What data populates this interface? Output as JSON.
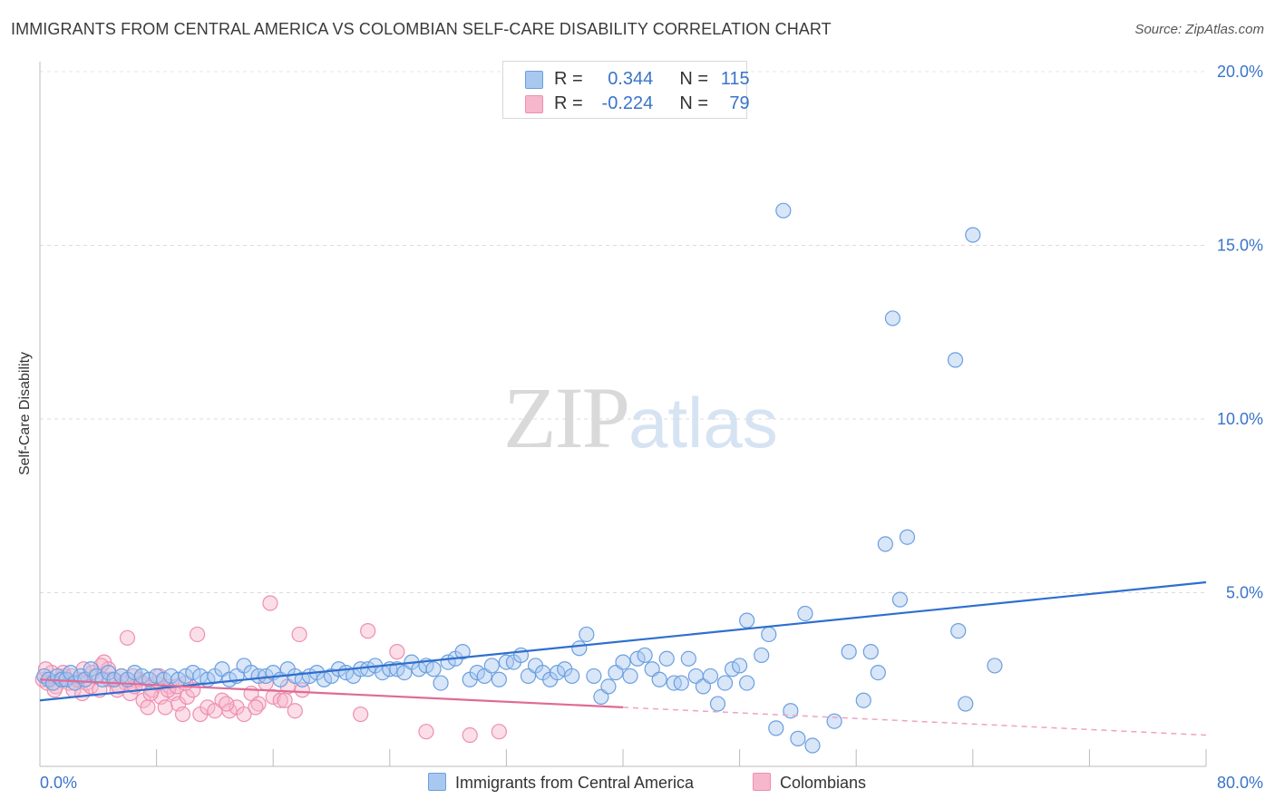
{
  "title": "IMMIGRANTS FROM CENTRAL AMERICA VS COLOMBIAN SELF-CARE DISABILITY CORRELATION CHART",
  "source": "Source: ZipAtlas.com",
  "watermark": {
    "zip": "ZIP",
    "atlas": "atlas"
  },
  "legend_top": {
    "rows": [
      {
        "r_label": "R =",
        "r_value": "0.344",
        "n_label": "N =",
        "n_value": "115",
        "color": "#a9c8f0"
      },
      {
        "r_label": "R =",
        "r_value": "-0.224",
        "n_label": "N =",
        "n_value": "79",
        "color": "#f6b6cb"
      }
    ]
  },
  "chart_data": {
    "type": "scatter",
    "xlabel": "",
    "ylabel": "Self-Care Disability",
    "xlim": [
      0,
      80
    ],
    "ylim": [
      0,
      20
    ],
    "x_tick_labels": [
      "0.0%",
      "80.0%"
    ],
    "y_tick_labels": [
      "5.0%",
      "10.0%",
      "15.0%",
      "20.0%"
    ],
    "y_ticks": [
      5,
      10,
      15,
      20
    ],
    "grid": true,
    "legend_placement": "bottom-center",
    "series": [
      {
        "name": "Immigrants from Central America",
        "color": "#6a9fe0",
        "fill": "#a9c8f0",
        "trend": {
          "x": [
            0,
            80
          ],
          "y": [
            1.9,
            5.3
          ],
          "style": "solid"
        },
        "points": [
          [
            0.3,
            2.6
          ],
          [
            0.6,
            2.5
          ],
          [
            0.9,
            2.4
          ],
          [
            1.2,
            2.6
          ],
          [
            1.5,
            2.5
          ],
          [
            1.8,
            2.5
          ],
          [
            2.1,
            2.7
          ],
          [
            2.4,
            2.4
          ],
          [
            2.8,
            2.6
          ],
          [
            3.1,
            2.5
          ],
          [
            3.5,
            2.8
          ],
          [
            3.9,
            2.6
          ],
          [
            4.3,
            2.5
          ],
          [
            4.7,
            2.7
          ],
          [
            5.1,
            2.5
          ],
          [
            5.6,
            2.6
          ],
          [
            6.0,
            2.5
          ],
          [
            6.5,
            2.7
          ],
          [
            7.0,
            2.6
          ],
          [
            7.5,
            2.5
          ],
          [
            8.0,
            2.6
          ],
          [
            8.5,
            2.5
          ],
          [
            9.0,
            2.6
          ],
          [
            9.5,
            2.5
          ],
          [
            10.0,
            2.6
          ],
          [
            10.5,
            2.7
          ],
          [
            11.0,
            2.6
          ],
          [
            11.5,
            2.5
          ],
          [
            12.0,
            2.6
          ],
          [
            12.5,
            2.8
          ],
          [
            13.0,
            2.5
          ],
          [
            13.5,
            2.6
          ],
          [
            14.0,
            2.9
          ],
          [
            14.5,
            2.7
          ],
          [
            15.0,
            2.6
          ],
          [
            15.5,
            2.6
          ],
          [
            16.0,
            2.7
          ],
          [
            16.5,
            2.5
          ],
          [
            17.0,
            2.8
          ],
          [
            17.5,
            2.6
          ],
          [
            18.0,
            2.5
          ],
          [
            18.5,
            2.6
          ],
          [
            19.0,
            2.7
          ],
          [
            19.5,
            2.5
          ],
          [
            20.0,
            2.6
          ],
          [
            20.5,
            2.8
          ],
          [
            21.0,
            2.7
          ],
          [
            21.5,
            2.6
          ],
          [
            22.0,
            2.8
          ],
          [
            22.5,
            2.8
          ],
          [
            23.0,
            2.9
          ],
          [
            23.5,
            2.7
          ],
          [
            24.0,
            2.8
          ],
          [
            24.5,
            2.8
          ],
          [
            25.0,
            2.7
          ],
          [
            25.5,
            3.0
          ],
          [
            26.0,
            2.8
          ],
          [
            26.5,
            2.9
          ],
          [
            27.0,
            2.8
          ],
          [
            27.5,
            2.4
          ],
          [
            28.0,
            3.0
          ],
          [
            28.5,
            3.1
          ],
          [
            29.0,
            3.3
          ],
          [
            29.5,
            2.5
          ],
          [
            30.0,
            2.7
          ],
          [
            30.5,
            2.6
          ],
          [
            31.0,
            2.9
          ],
          [
            31.5,
            2.5
          ],
          [
            32.0,
            3.0
          ],
          [
            32.5,
            3.0
          ],
          [
            33.0,
            3.2
          ],
          [
            33.5,
            2.6
          ],
          [
            34.0,
            2.9
          ],
          [
            34.5,
            2.7
          ],
          [
            35.0,
            2.5
          ],
          [
            35.5,
            2.7
          ],
          [
            36.0,
            2.8
          ],
          [
            36.5,
            2.6
          ],
          [
            37.0,
            3.4
          ],
          [
            37.5,
            3.8
          ],
          [
            38.0,
            2.6
          ],
          [
            38.5,
            2.0
          ],
          [
            39.0,
            2.3
          ],
          [
            39.5,
            2.7
          ],
          [
            40.0,
            3.0
          ],
          [
            40.5,
            2.6
          ],
          [
            41.0,
            3.1
          ],
          [
            41.5,
            3.2
          ],
          [
            42.0,
            2.8
          ],
          [
            42.5,
            2.5
          ],
          [
            43.0,
            3.1
          ],
          [
            43.5,
            2.4
          ],
          [
            44.0,
            2.4
          ],
          [
            44.5,
            3.1
          ],
          [
            45.0,
            2.6
          ],
          [
            45.5,
            2.3
          ],
          [
            46.0,
            2.6
          ],
          [
            46.5,
            1.8
          ],
          [
            47.0,
            2.4
          ],
          [
            47.5,
            2.8
          ],
          [
            48.0,
            2.9
          ],
          [
            48.5,
            2.4
          ],
          [
            49.5,
            3.2
          ],
          [
            50.5,
            1.1
          ],
          [
            51.5,
            1.6
          ],
          [
            52.0,
            0.8
          ],
          [
            53.0,
            0.6
          ],
          [
            54.5,
            1.3
          ],
          [
            56.5,
            1.9
          ],
          [
            57.0,
            3.3
          ],
          [
            58.0,
            6.4
          ],
          [
            59.5,
            6.6
          ],
          [
            63.5,
            1.8
          ],
          [
            65.5,
            2.9
          ],
          [
            55.5,
            3.3
          ],
          [
            59.0,
            4.8
          ],
          [
            51.0,
            16.0
          ],
          [
            64.0,
            15.3
          ],
          [
            58.5,
            12.9
          ],
          [
            62.8,
            11.7
          ],
          [
            48.5,
            4.2
          ],
          [
            52.5,
            4.4
          ],
          [
            63.0,
            3.9
          ],
          [
            50.0,
            3.8
          ],
          [
            57.5,
            2.7
          ]
        ]
      },
      {
        "name": "Colombians",
        "color": "#ee8fb0",
        "fill": "#f6b6cb",
        "trend": {
          "x": [
            0,
            40
          ],
          "y": [
            2.5,
            1.7
          ],
          "style": "solid",
          "dashed_x": [
            40,
            80
          ],
          "dashed_y": [
            1.7,
            0.9
          ]
        },
        "points": [
          [
            0.2,
            2.5
          ],
          [
            0.5,
            2.4
          ],
          [
            0.8,
            2.7
          ],
          [
            1.1,
            2.3
          ],
          [
            1.4,
            2.5
          ],
          [
            1.7,
            2.6
          ],
          [
            2.0,
            2.4
          ],
          [
            2.3,
            2.2
          ],
          [
            2.6,
            2.5
          ],
          [
            2.9,
            2.1
          ],
          [
            3.2,
            2.4
          ],
          [
            3.5,
            2.3
          ],
          [
            3.8,
            2.6
          ],
          [
            4.1,
            2.2
          ],
          [
            4.4,
            3.0
          ],
          [
            4.7,
            2.8
          ],
          [
            5.0,
            2.5
          ],
          [
            5.3,
            2.2
          ],
          [
            5.6,
            2.6
          ],
          [
            5.9,
            2.4
          ],
          [
            6.2,
            2.1
          ],
          [
            6.5,
            2.3
          ],
          [
            6.8,
            2.5
          ],
          [
            7.1,
            1.9
          ],
          [
            7.4,
            1.7
          ],
          [
            7.7,
            2.2
          ],
          [
            8.0,
            2.4
          ],
          [
            8.3,
            2.0
          ],
          [
            8.6,
            1.7
          ],
          [
            8.9,
            2.3
          ],
          [
            9.2,
            2.1
          ],
          [
            9.5,
            1.8
          ],
          [
            9.8,
            1.5
          ],
          [
            10.1,
            2.0
          ],
          [
            10.5,
            2.2
          ],
          [
            11.0,
            1.5
          ],
          [
            11.5,
            1.7
          ],
          [
            12.0,
            1.6
          ],
          [
            12.5,
            1.9
          ],
          [
            13.0,
            1.6
          ],
          [
            13.5,
            1.7
          ],
          [
            14.0,
            1.5
          ],
          [
            14.5,
            2.1
          ],
          [
            15.0,
            1.8
          ],
          [
            15.5,
            2.4
          ],
          [
            16.0,
            2.0
          ],
          [
            16.5,
            1.9
          ],
          [
            17.0,
            2.3
          ],
          [
            17.5,
            1.6
          ],
          [
            18.0,
            2.2
          ],
          [
            6.0,
            3.7
          ],
          [
            10.8,
            3.8
          ],
          [
            15.8,
            4.7
          ],
          [
            17.8,
            3.8
          ],
          [
            22.5,
            3.9
          ],
          [
            24.5,
            3.3
          ],
          [
            26.5,
            1.0
          ],
          [
            29.5,
            0.9
          ],
          [
            31.5,
            1.0
          ],
          [
            22.0,
            1.5
          ],
          [
            0.4,
            2.8
          ],
          [
            1.0,
            2.2
          ],
          [
            1.6,
            2.7
          ],
          [
            2.2,
            2.6
          ],
          [
            3.0,
            2.8
          ],
          [
            3.6,
            2.7
          ],
          [
            4.2,
            2.9
          ],
          [
            4.8,
            2.5
          ],
          [
            5.4,
            2.3
          ],
          [
            6.4,
            2.6
          ],
          [
            7.0,
            2.4
          ],
          [
            7.6,
            2.1
          ],
          [
            8.2,
            2.6
          ],
          [
            8.8,
            2.2
          ],
          [
            9.4,
            2.3
          ],
          [
            10.0,
            2.4
          ],
          [
            12.8,
            1.8
          ],
          [
            14.8,
            1.7
          ],
          [
            16.8,
            1.9
          ]
        ]
      }
    ]
  }
}
